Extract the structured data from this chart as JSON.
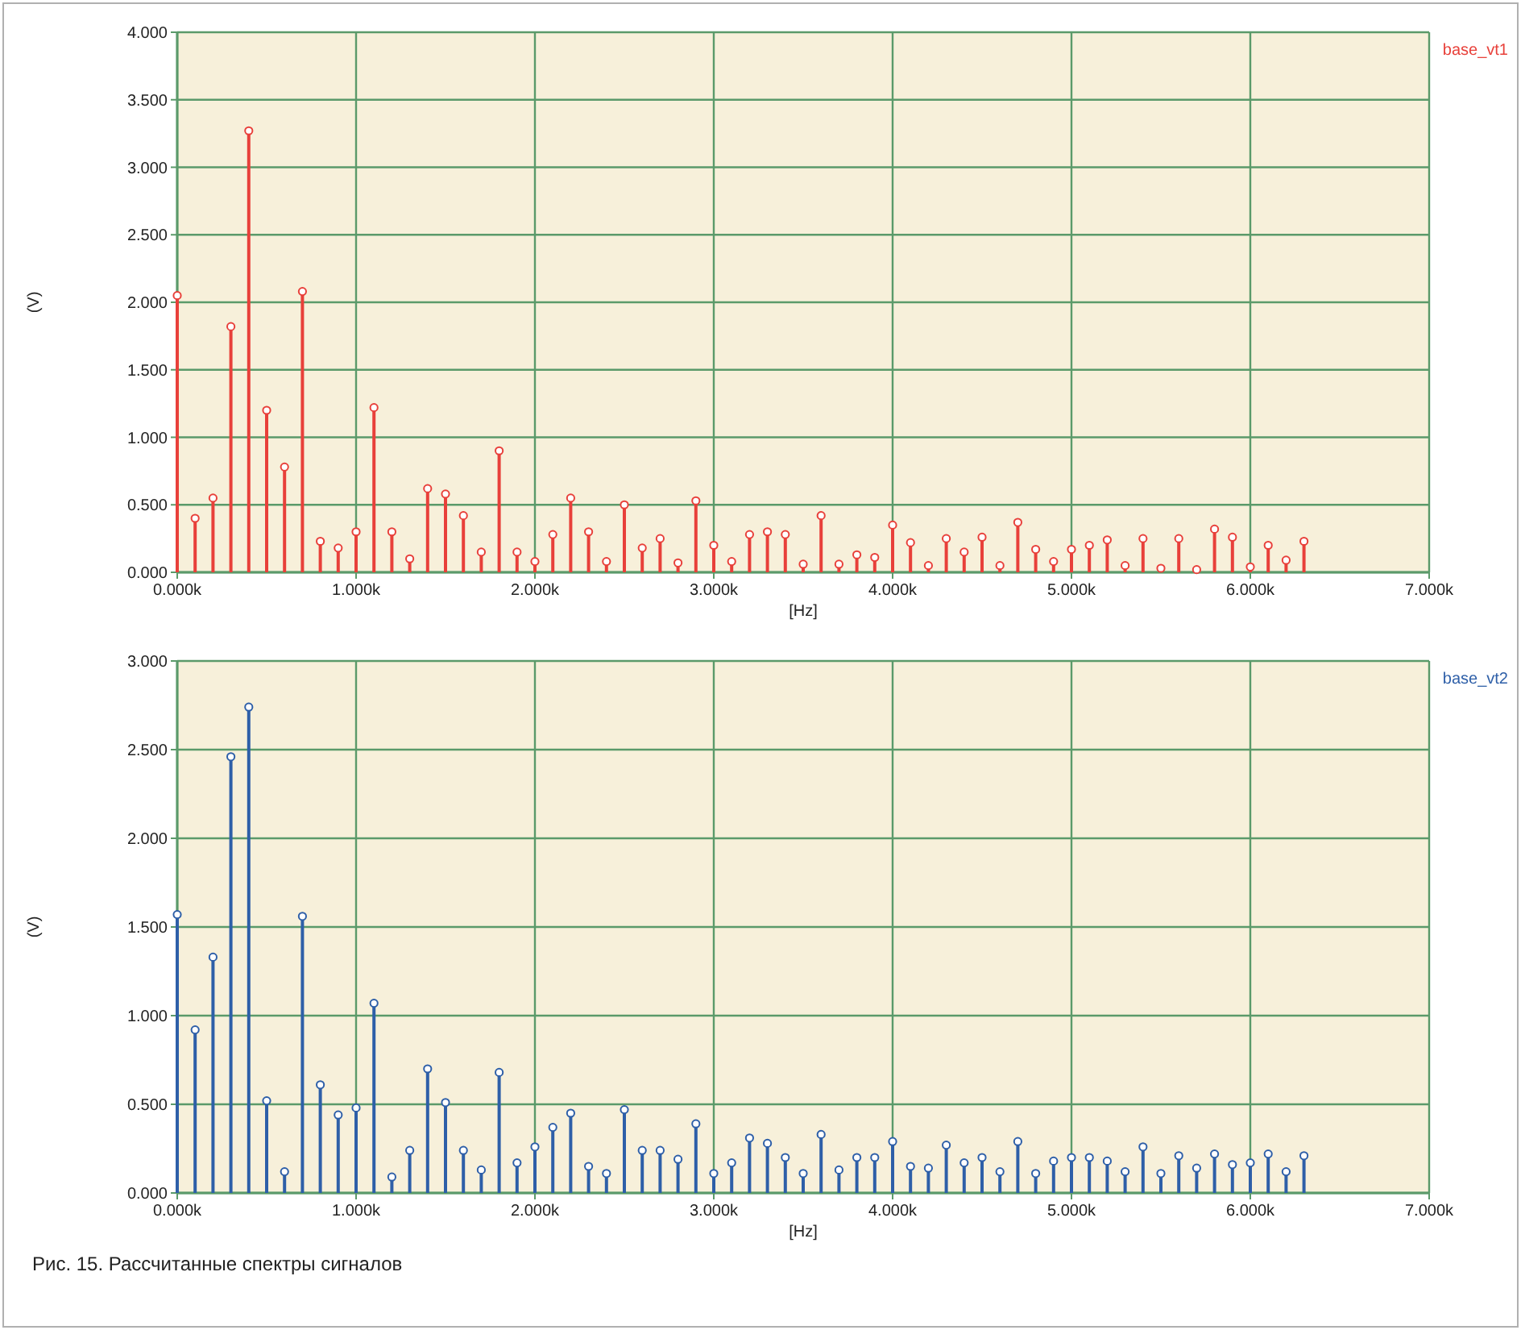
{
  "chart_data": [
    {
      "type": "lollipop",
      "ylabel": "(V)",
      "xlabel": "[Hz]",
      "grid": true,
      "legend": "top right",
      "marker": "circle",
      "x": [
        0,
        100,
        200,
        300,
        400,
        500,
        600,
        700,
        800,
        900,
        1000,
        1100,
        1200,
        1300,
        1400,
        1500,
        1600,
        1700,
        1800,
        1900,
        2000,
        2100,
        2200,
        2300,
        2400,
        2500,
        2600,
        2700,
        2800,
        2900,
        3000,
        3100,
        3200,
        3300,
        3400,
        3500,
        3600,
        3700,
        3800,
        3900,
        4000,
        4100,
        4200,
        4300,
        4400,
        4500,
        4600,
        4700,
        4800,
        4900,
        5000,
        5100,
        5200,
        5300,
        5400,
        5500,
        5600,
        5700,
        5800,
        5900,
        6000,
        6100,
        6200,
        6300
      ],
      "xlim": [
        0,
        7000
      ],
      "xticks": [
        {
          "value": 0,
          "label": "0.000k"
        },
        {
          "value": 1000,
          "label": "1.000k"
        },
        {
          "value": 2000,
          "label": "2.000k"
        },
        {
          "value": 3000,
          "label": "3.000k"
        },
        {
          "value": 4000,
          "label": "4.000k"
        },
        {
          "value": 5000,
          "label": "5.000k"
        },
        {
          "value": 6000,
          "label": "6.000k"
        },
        {
          "value": 7000,
          "label": "7.000k"
        }
      ],
      "ylim": [
        0,
        4
      ],
      "yticks": [
        {
          "value": 0,
          "label": "0.000"
        },
        {
          "value": 0.5,
          "label": "0.500"
        },
        {
          "value": 1,
          "label": "1.000"
        },
        {
          "value": 1.5,
          "label": "1.500"
        },
        {
          "value": 2,
          "label": "2.000"
        },
        {
          "value": 2.5,
          "label": "2.500"
        },
        {
          "value": 3,
          "label": "3.000"
        },
        {
          "value": 3.5,
          "label": "3.500"
        },
        {
          "value": 4,
          "label": "4.000"
        }
      ],
      "series": [
        {
          "name": "base_vt1",
          "color": "#e8403a",
          "values": [
            2.05,
            0.4,
            0.55,
            1.82,
            3.27,
            1.2,
            0.78,
            2.08,
            0.23,
            0.18,
            0.3,
            1.22,
            0.3,
            0.1,
            0.62,
            0.58,
            0.42,
            0.15,
            0.9,
            0.15,
            0.08,
            0.28,
            0.55,
            0.3,
            0.08,
            0.5,
            0.18,
            0.25,
            0.07,
            0.53,
            0.2,
            0.08,
            0.28,
            0.3,
            0.28,
            0.06,
            0.42,
            0.06,
            0.13,
            0.11,
            0.35,
            0.22,
            0.05,
            0.25,
            0.15,
            0.26,
            0.05,
            0.37,
            0.17,
            0.08,
            0.17,
            0.2,
            0.24,
            0.05,
            0.25,
            0.03,
            0.25,
            0.02,
            0.32,
            0.26,
            0.04,
            0.2,
            0.09,
            0.23
          ]
        }
      ]
    },
    {
      "type": "lollipop",
      "ylabel": "(V)",
      "xlabel": "[Hz]",
      "grid": true,
      "legend": "top right",
      "marker": "circle",
      "x": [
        0,
        100,
        200,
        300,
        400,
        500,
        600,
        700,
        800,
        900,
        1000,
        1100,
        1200,
        1300,
        1400,
        1500,
        1600,
        1700,
        1800,
        1900,
        2000,
        2100,
        2200,
        2300,
        2400,
        2500,
        2600,
        2700,
        2800,
        2900,
        3000,
        3100,
        3200,
        3300,
        3400,
        3500,
        3600,
        3700,
        3800,
        3900,
        4000,
        4100,
        4200,
        4300,
        4400,
        4500,
        4600,
        4700,
        4800,
        4900,
        5000,
        5100,
        5200,
        5300,
        5400,
        5500,
        5600,
        5700,
        5800,
        5900,
        6000,
        6100,
        6200,
        6300
      ],
      "xlim": [
        0,
        7000
      ],
      "xticks": [
        {
          "value": 0,
          "label": "0.000k"
        },
        {
          "value": 1000,
          "label": "1.000k"
        },
        {
          "value": 2000,
          "label": "2.000k"
        },
        {
          "value": 3000,
          "label": "3.000k"
        },
        {
          "value": 4000,
          "label": "4.000k"
        },
        {
          "value": 5000,
          "label": "5.000k"
        },
        {
          "value": 6000,
          "label": "6.000k"
        },
        {
          "value": 7000,
          "label": "7.000k"
        }
      ],
      "ylim": [
        0,
        3
      ],
      "yticks": [
        {
          "value": 0,
          "label": "0.000"
        },
        {
          "value": 0.5,
          "label": "0.500"
        },
        {
          "value": 1,
          "label": "1.000"
        },
        {
          "value": 1.5,
          "label": "1.500"
        },
        {
          "value": 2,
          "label": "2.000"
        },
        {
          "value": 2.5,
          "label": "2.500"
        },
        {
          "value": 3,
          "label": "3.000"
        }
      ],
      "annotations": [
        "Рис. 15. Рассчитанные спектры сигналов"
      ],
      "series": [
        {
          "name": "base_vt2",
          "color": "#2e5fa8",
          "values": [
            1.57,
            0.92,
            1.33,
            2.46,
            2.74,
            0.52,
            0.12,
            1.56,
            0.61,
            0.44,
            0.48,
            1.07,
            0.09,
            0.24,
            0.7,
            0.51,
            0.24,
            0.13,
            0.68,
            0.17,
            0.26,
            0.37,
            0.45,
            0.15,
            0.11,
            0.47,
            0.24,
            0.24,
            0.19,
            0.39,
            0.11,
            0.17,
            0.31,
            0.28,
            0.2,
            0.11,
            0.33,
            0.13,
            0.2,
            0.2,
            0.29,
            0.15,
            0.14,
            0.27,
            0.17,
            0.2,
            0.12,
            0.29,
            0.11,
            0.18,
            0.2,
            0.2,
            0.18,
            0.12,
            0.26,
            0.11,
            0.21,
            0.14,
            0.22,
            0.16,
            0.17,
            0.22,
            0.12,
            0.21
          ]
        }
      ]
    }
  ]
}
